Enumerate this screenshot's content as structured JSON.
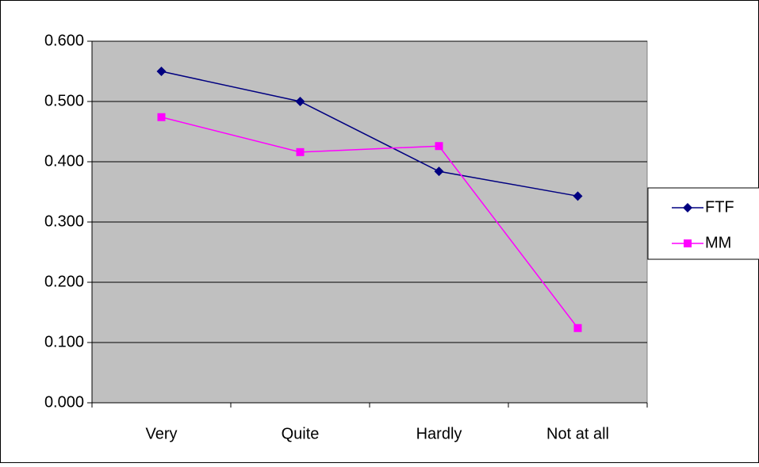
{
  "chart_data": {
    "type": "line",
    "categories": [
      "Very",
      "Quite",
      "Hardly",
      "Not at all"
    ],
    "series": [
      {
        "name": "FTF",
        "color": "#000080",
        "marker": "diamond",
        "values": [
          0.55,
          0.5,
          0.384,
          0.343
        ]
      },
      {
        "name": "MM",
        "color": "#ff00ff",
        "marker": "square",
        "values": [
          0.474,
          0.416,
          0.426,
          0.124
        ]
      }
    ],
    "ylim": [
      0,
      0.6
    ],
    "yticks": [
      {
        "value": 0,
        "label": "0.000"
      },
      {
        "value": 0.1,
        "label": "0.100"
      },
      {
        "value": 0.2,
        "label": "0.200"
      },
      {
        "value": 0.3,
        "label": "0.300"
      },
      {
        "value": 0.4,
        "label": "0.400"
      },
      {
        "value": 0.5,
        "label": "0.500"
      },
      {
        "value": 0.6,
        "label": "0.600"
      }
    ],
    "grid": true,
    "legend": "right",
    "plot_background": "#c0c0c0"
  }
}
